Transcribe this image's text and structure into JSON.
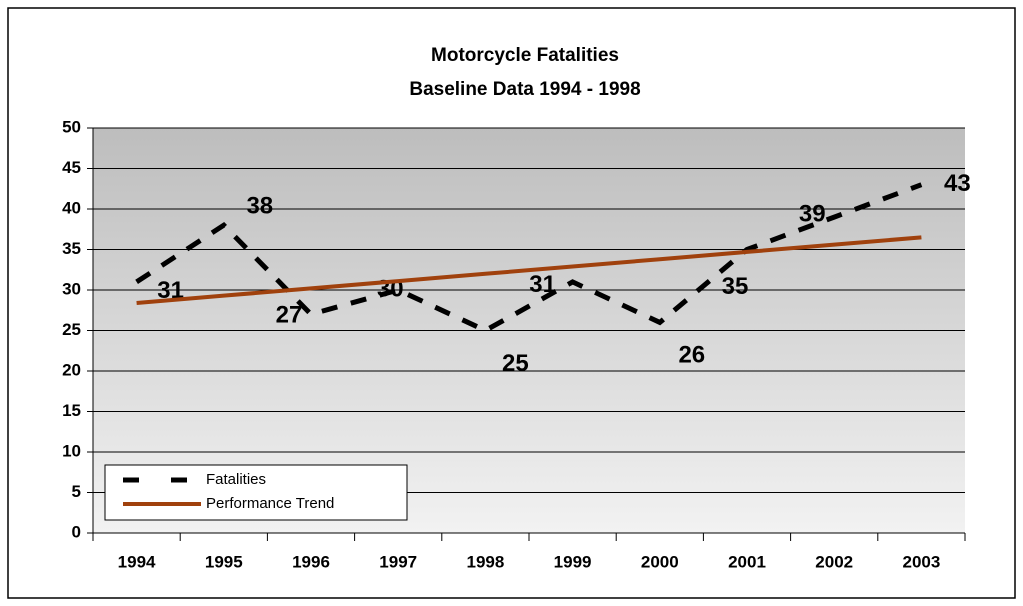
{
  "chart_data": {
    "type": "line",
    "title": "Motorcycle Fatalities",
    "subtitle": "Baseline Data 1994 - 1998",
    "categories": [
      "1994",
      "1995",
      "1996",
      "1997",
      "1998",
      "1999",
      "2000",
      "2001",
      "2002",
      "2003"
    ],
    "series": [
      {
        "name": "Fatalities",
        "color": "#000000",
        "style": "dashed",
        "data_labels": true,
        "values": [
          31,
          38,
          27,
          30,
          25,
          31,
          26,
          35,
          39,
          43
        ]
      },
      {
        "name": "Performance Trend",
        "color": "#a0410d",
        "style": "solid",
        "data_labels": false,
        "values": [
          28.4,
          29.3,
          30.2,
          31.1,
          32.0,
          32.9,
          33.8,
          34.7,
          35.6,
          36.5
        ]
      }
    ],
    "ylim": [
      0,
      50
    ],
    "yticks": [
      0,
      5,
      10,
      15,
      20,
      25,
      30,
      35,
      40,
      45,
      50
    ],
    "grid": true,
    "legend": "lower left"
  }
}
